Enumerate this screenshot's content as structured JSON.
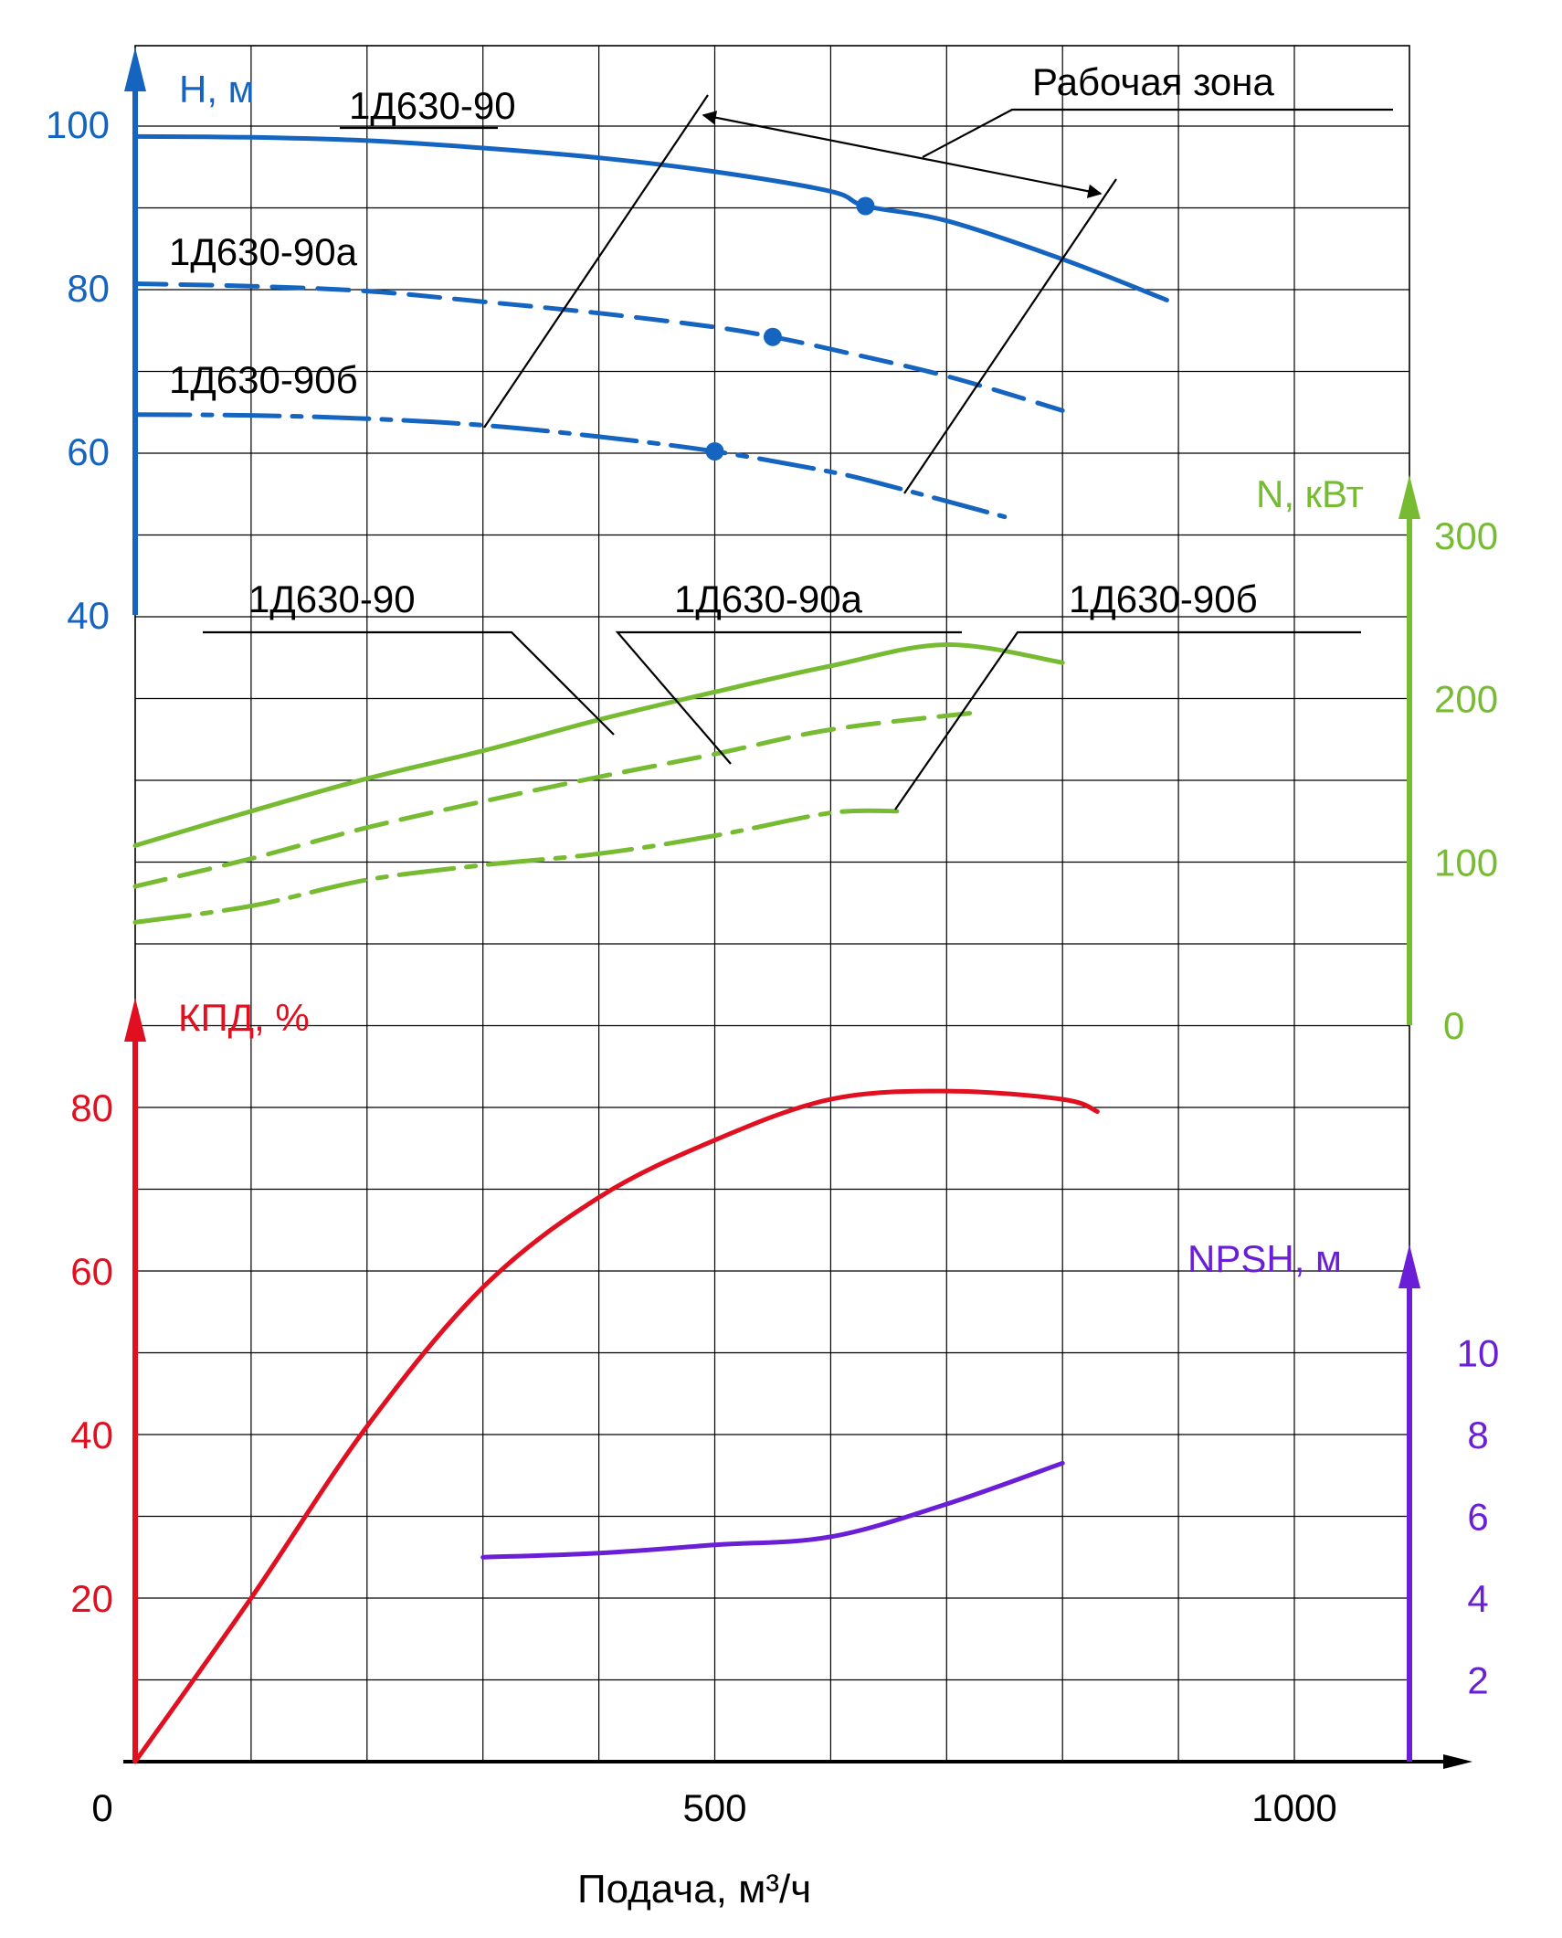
{
  "chart_data": {
    "type": "line",
    "xlabel": "Подача, м³/ч",
    "x_ticks": [
      "0",
      "500",
      "1000"
    ],
    "x_tick_values": [
      0,
      500,
      1000
    ],
    "xlim": [
      0,
      1100
    ],
    "grid": true,
    "colors": {
      "head": "#1565c0",
      "power": "#77bb33",
      "efficiency": "#e01020",
      "npsh": "#6a1fd6",
      "axis": "#000000",
      "grid": "#000000"
    },
    "axes": {
      "head": {
        "label": "H, м",
        "ticks": [
          "100",
          "80",
          "60",
          "40"
        ],
        "tick_values": [
          100,
          80,
          60,
          40
        ],
        "range": [
          40,
          100
        ],
        "side": "left"
      },
      "power": {
        "label": "N, кВт",
        "ticks": [
          "300",
          "200",
          "100",
          "0"
        ],
        "tick_values": [
          300,
          200,
          100,
          0
        ],
        "range": [
          0,
          300
        ],
        "side": "right"
      },
      "efficiency": {
        "label": "КПД, %",
        "ticks": [
          "80",
          "60",
          "40",
          "20"
        ],
        "tick_values": [
          80,
          60,
          40,
          20
        ],
        "range": [
          0,
          80
        ],
        "side": "left"
      },
      "npsh": {
        "label": "NPSH, м",
        "ticks": [
          "10",
          "8",
          "6",
          "4",
          "2"
        ],
        "tick_values": [
          10,
          8,
          6,
          4,
          2
        ],
        "range": [
          0,
          10
        ],
        "side": "right"
      }
    },
    "head_series": [
      {
        "name": "1Д630-90",
        "style": "solid",
        "x": [
          0,
          100,
          200,
          300,
          400,
          500,
          600,
          630,
          700,
          800,
          890
        ],
        "y": [
          98.5,
          98.4,
          98.0,
          97.1,
          95.9,
          94.2,
          91.8,
          90.0,
          88.2,
          83.5,
          78.5
        ],
        "marker": {
          "x": 630,
          "y": 90
        }
      },
      {
        "name": "1Д630-90а",
        "style": "dashed",
        "x": [
          0,
          100,
          200,
          300,
          400,
          500,
          550,
          600,
          700,
          800
        ],
        "y": [
          80.5,
          80.2,
          79.6,
          78.3,
          76.9,
          75.2,
          74.0,
          72.5,
          69.2,
          65.0
        ],
        "marker": {
          "x": 550,
          "y": 74
        }
      },
      {
        "name": "1Д630-90б",
        "style": "dashdot",
        "x": [
          0,
          100,
          200,
          300,
          400,
          500,
          600,
          650,
          750
        ],
        "y": [
          64.5,
          64.4,
          64.0,
          63.2,
          61.8,
          60.0,
          57.5,
          55.8,
          52.0
        ],
        "marker": {
          "x": 500,
          "y": 60
        }
      }
    ],
    "power_series": [
      {
        "name": "1Д630-90",
        "style": "solid",
        "x": [
          0,
          100,
          200,
          300,
          400,
          500,
          600,
          700,
          800
        ],
        "y": [
          110,
          131,
          151,
          168,
          187,
          204,
          220,
          233,
          222
        ]
      },
      {
        "name": "1Д630-90а",
        "style": "dashed",
        "x": [
          0,
          100,
          200,
          300,
          400,
          500,
          600,
          720
        ],
        "y": [
          85,
          102,
          121,
          137,
          152,
          166,
          181,
          191
        ]
      },
      {
        "name": "1Д630-90б",
        "style": "dashdot",
        "x": [
          0,
          100,
          200,
          300,
          400,
          500,
          600,
          660
        ],
        "y": [
          63,
          73,
          89,
          98,
          105,
          116,
          130,
          131
        ]
      }
    ],
    "efficiency_series": [
      {
        "name": "КПД",
        "x": [
          0,
          100,
          200,
          300,
          400,
          500,
          600,
          700,
          800,
          830
        ],
        "y": [
          0,
          20,
          41,
          58,
          69,
          76,
          81,
          82,
          81,
          79.5
        ]
      }
    ],
    "npsh_series": [
      {
        "name": "NPSH",
        "x": [
          300,
          400,
          500,
          600,
          700,
          800
        ],
        "y": [
          5.0,
          5.1,
          5.3,
          5.5,
          6.3,
          7.3
        ]
      }
    ],
    "annotations": {
      "working_zone": "Рабочая зона",
      "head_curve_labels": [
        "1Д630-90",
        "1Д630-90а",
        "1Д630-90б"
      ],
      "power_curve_labels": [
        "1Д630-90",
        "1Д630-90а",
        "1Д630-90б"
      ]
    }
  }
}
